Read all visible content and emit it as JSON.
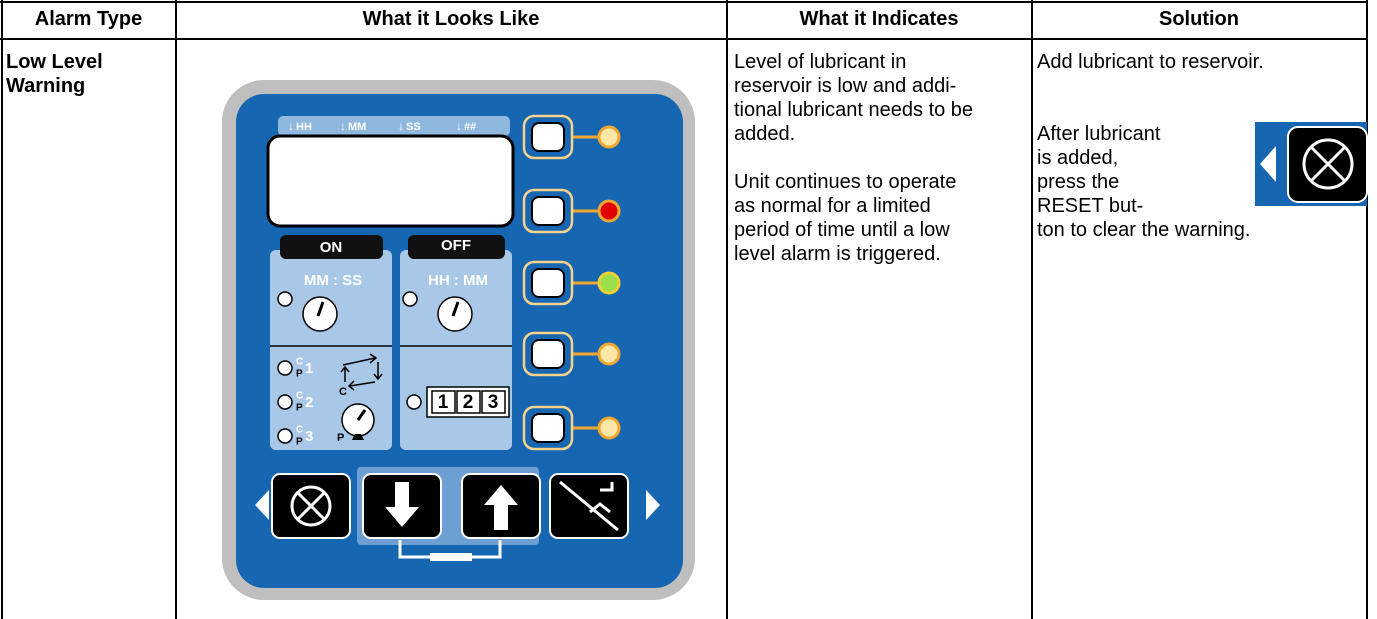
{
  "table": {
    "header": [
      "Alarm Type",
      "What it Looks Like",
      "What it Indicates",
      "Solution"
    ],
    "rows": [
      {
        "alarm_type": [
          "Low Level",
          "Warning"
        ],
        "indicates": [
          [
            "Level of lubricant in",
            "reservoir is low and addi-",
            "tional lubricant needs to be",
            "added."
          ],
          [
            "Unit continues to operate",
            "as normal for a limited",
            "period of time until a low",
            "level alarm is triggered."
          ]
        ],
        "solution": [
          [
            "Add lubricant to reservoir."
          ],
          [
            "After lubricant",
            "is added,",
            "press the",
            "RESET but-",
            "ton to clear the warning."
          ]
        ]
      }
    ]
  },
  "panel": {
    "display_labels": [
      "HH",
      "MM",
      "SS",
      "##"
    ],
    "on": "ON",
    "off": "OFF",
    "on_format": "MM : SS",
    "off_format": "HH : MM",
    "modes": [
      {
        "c": "C",
        "p": "P",
        "n": "1"
      },
      {
        "c": "C",
        "p": "P",
        "n": "2"
      },
      {
        "c": "C",
        "p": "P",
        "n": "3"
      }
    ],
    "cycle_label": "C",
    "pressure_label": "P",
    "counter_digits": [
      "1",
      "2",
      "3"
    ]
  }
}
